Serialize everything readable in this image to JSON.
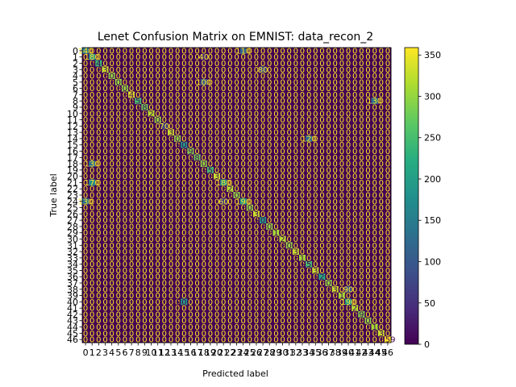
{
  "chart_data": {
    "type": "heatmap",
    "title": "Lenet Confusion Matrix on EMNIST: data_recon_2",
    "xlabel": "Predicted label",
    "ylabel": "True label",
    "classes": [
      "0",
      "1",
      "2",
      "3",
      "4",
      "5",
      "6",
      "7",
      "8",
      "9",
      "10",
      "11",
      "12",
      "13",
      "14",
      "15",
      "16",
      "17",
      "18",
      "19",
      "20",
      "21",
      "22",
      "23",
      "24",
      "25",
      "26",
      "27",
      "28",
      "29",
      "30",
      "31",
      "32",
      "33",
      "34",
      "35",
      "36",
      "37",
      "38",
      "39",
      "40",
      "41",
      "42",
      "43",
      "44",
      "45",
      "46"
    ],
    "diagonal_counts": [
      140,
      180,
      240,
      330,
      300,
      300,
      300,
      340,
      250,
      280,
      320,
      300,
      70,
      330,
      300,
      200,
      290,
      280,
      300,
      250,
      330,
      180,
      320,
      300,
      190,
      300,
      330,
      200,
      300,
      310,
      320,
      300,
      330,
      310,
      250,
      330,
      220,
      300,
      330,
      310,
      190,
      320,
      290,
      300,
      310,
      330,
      359
    ],
    "off_diagonal_highlights": [
      {
        "true": 0,
        "pred": 24,
        "value": 110
      },
      {
        "true": 1,
        "pred": 18,
        "value": 40
      },
      {
        "true": 18,
        "pred": 1,
        "value": 130
      },
      {
        "true": 21,
        "pred": 1,
        "value": 170
      },
      {
        "true": 24,
        "pred": 0,
        "value": 130
      },
      {
        "true": 24,
        "pred": 21,
        "value": 60
      },
      {
        "true": 40,
        "pred": 15,
        "value": 200
      },
      {
        "true": 38,
        "pred": 40,
        "value": 90
      },
      {
        "true": 14,
        "pred": 34,
        "value": 120
      },
      {
        "true": 8,
        "pred": 44,
        "value": 130
      },
      {
        "true": 3,
        "pred": 27,
        "value": 80
      },
      {
        "true": 5,
        "pred": 18,
        "value": 100
      }
    ],
    "colorbar_ticks": [
      0,
      50,
      100,
      150,
      200,
      250,
      300,
      350
    ],
    "value_range": [
      0,
      359
    ],
    "colormap": "viridis"
  }
}
